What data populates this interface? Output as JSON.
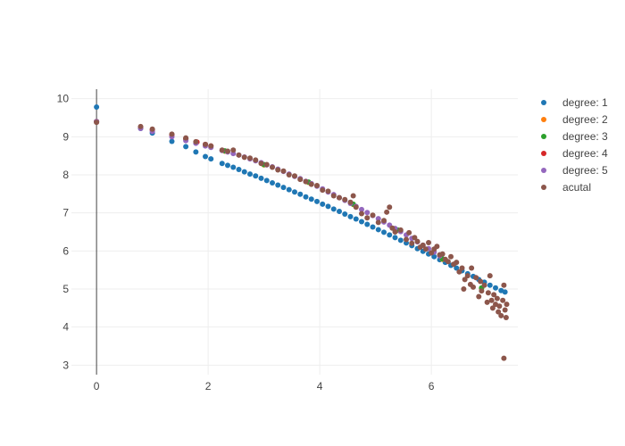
{
  "chart_data": {
    "type": "scatter",
    "title": "",
    "xlabel": "",
    "ylabel": "",
    "xlim": [
      -0.45,
      7.55
    ],
    "ylim": [
      2.75,
      10.25
    ],
    "x_ticks": [
      0,
      2,
      4,
      6
    ],
    "y_ticks": [
      3,
      4,
      5,
      6,
      7,
      8,
      9,
      10
    ],
    "grid": true,
    "legend_position": "right",
    "series": [
      {
        "name": "degree: 1",
        "color": "#1f77b4",
        "points": [
          [
            0,
            9.78
          ],
          [
            0.79,
            9.22
          ],
          [
            1.0,
            9.1
          ],
          [
            1.35,
            8.88
          ],
          [
            1.6,
            8.74
          ],
          [
            1.78,
            8.6
          ],
          [
            1.95,
            8.48
          ],
          [
            2.05,
            8.42
          ],
          [
            2.25,
            8.3
          ],
          [
            2.35,
            8.25
          ],
          [
            2.45,
            8.2
          ],
          [
            2.55,
            8.14
          ],
          [
            2.65,
            8.08
          ],
          [
            2.75,
            8.02
          ],
          [
            2.85,
            7.97
          ],
          [
            2.95,
            7.91
          ],
          [
            3.05,
            7.85
          ],
          [
            3.15,
            7.79
          ],
          [
            3.25,
            7.73
          ],
          [
            3.35,
            7.67
          ],
          [
            3.45,
            7.61
          ],
          [
            3.55,
            7.55
          ],
          [
            3.65,
            7.49
          ],
          [
            3.75,
            7.42
          ],
          [
            3.85,
            7.36
          ],
          [
            3.95,
            7.3
          ],
          [
            4.05,
            7.23
          ],
          [
            4.15,
            7.17
          ],
          [
            4.25,
            7.1
          ],
          [
            4.35,
            7.04
          ],
          [
            4.45,
            6.97
          ],
          [
            4.55,
            6.9
          ],
          [
            4.65,
            6.84
          ],
          [
            4.75,
            6.77
          ],
          [
            4.85,
            6.7
          ],
          [
            4.95,
            6.63
          ],
          [
            5.05,
            6.56
          ],
          [
            5.15,
            6.49
          ],
          [
            5.25,
            6.42
          ],
          [
            5.35,
            6.35
          ],
          [
            5.45,
            6.28
          ],
          [
            5.55,
            6.21
          ],
          [
            5.65,
            6.14
          ],
          [
            5.75,
            6.06
          ],
          [
            5.85,
            5.99
          ],
          [
            5.95,
            5.92
          ],
          [
            6.05,
            5.85
          ],
          [
            6.15,
            5.77
          ],
          [
            6.25,
            5.7
          ],
          [
            6.35,
            5.62
          ],
          [
            6.45,
            5.55
          ],
          [
            6.55,
            5.48
          ],
          [
            6.65,
            5.4
          ],
          [
            6.75,
            5.33
          ],
          [
            6.85,
            5.25
          ],
          [
            6.95,
            5.18
          ],
          [
            7.05,
            5.1
          ],
          [
            7.15,
            5.03
          ],
          [
            7.25,
            4.96
          ],
          [
            7.32,
            4.92
          ]
        ]
      },
      {
        "name": "degree: 2",
        "color": "#ff7f0e",
        "points": [
          [
            0,
            9.4
          ],
          [
            0.79,
            9.24
          ],
          [
            1.6,
            8.94
          ],
          [
            2.3,
            8.62
          ],
          [
            3.0,
            8.26
          ],
          [
            3.8,
            7.8
          ],
          [
            4.6,
            7.22
          ],
          [
            5.4,
            6.54
          ],
          [
            6.2,
            5.78
          ],
          [
            6.9,
            5.02
          ]
        ]
      },
      {
        "name": "degree: 3",
        "color": "#2ca02c",
        "points": [
          [
            0,
            9.4
          ],
          [
            0.79,
            9.24
          ],
          [
            1.6,
            8.94
          ],
          [
            2.3,
            8.63
          ],
          [
            3.0,
            8.27
          ],
          [
            3.8,
            7.81
          ],
          [
            4.6,
            7.23
          ],
          [
            5.4,
            6.55
          ],
          [
            6.2,
            5.79
          ],
          [
            6.9,
            5.03
          ]
        ]
      },
      {
        "name": "degree: 4",
        "color": "#d62728",
        "points": [
          [
            0,
            9.4
          ],
          [
            0.79,
            9.25
          ],
          [
            1.0,
            9.18
          ],
          [
            1.35,
            9.05
          ],
          [
            1.6,
            8.95
          ],
          [
            1.8,
            8.86
          ],
          [
            1.95,
            8.8
          ],
          [
            2.05,
            8.76
          ]
        ]
      },
      {
        "name": "degree: 5",
        "color": "#9467bd",
        "points": [
          [
            0,
            9.4
          ],
          [
            0.79,
            9.22
          ],
          [
            1.0,
            9.14
          ],
          [
            1.35,
            9.0
          ],
          [
            1.6,
            8.9
          ],
          [
            1.78,
            8.83
          ],
          [
            1.95,
            8.76
          ],
          [
            2.05,
            8.72
          ],
          [
            2.25,
            8.64
          ],
          [
            2.35,
            8.6
          ],
          [
            2.45,
            8.56
          ],
          [
            2.55,
            8.52
          ],
          [
            2.65,
            8.47
          ],
          [
            2.75,
            8.42
          ],
          [
            2.85,
            8.37
          ],
          [
            2.95,
            8.32
          ],
          [
            3.05,
            8.26
          ],
          [
            3.15,
            8.21
          ],
          [
            3.25,
            8.15
          ],
          [
            3.35,
            8.09
          ],
          [
            3.45,
            8.02
          ],
          [
            3.55,
            7.96
          ],
          [
            3.65,
            7.9
          ],
          [
            3.75,
            7.83
          ],
          [
            3.85,
            7.77
          ],
          [
            3.95,
            7.7
          ],
          [
            4.05,
            7.63
          ],
          [
            4.15,
            7.55
          ],
          [
            4.25,
            7.48
          ],
          [
            4.35,
            7.4
          ],
          [
            4.45,
            7.33
          ],
          [
            4.55,
            7.25
          ],
          [
            4.65,
            7.17
          ],
          [
            4.75,
            7.09
          ],
          [
            4.85,
            7.01
          ],
          [
            4.95,
            6.93
          ],
          [
            5.05,
            6.85
          ],
          [
            5.15,
            6.76
          ],
          [
            5.25,
            6.68
          ],
          [
            5.35,
            6.59
          ],
          [
            5.45,
            6.51
          ],
          [
            5.55,
            6.42
          ],
          [
            5.65,
            6.33
          ],
          [
            5.75,
            6.24
          ],
          [
            5.85,
            6.15
          ],
          [
            5.95,
            6.06
          ],
          [
            6.05,
            5.97
          ],
          [
            6.15,
            5.87
          ]
        ]
      },
      {
        "name": "acutal",
        "color": "#8c564b",
        "points": [
          [
            0,
            9.38
          ],
          [
            0.79,
            9.27
          ],
          [
            1.0,
            9.2
          ],
          [
            1.35,
            9.07
          ],
          [
            1.6,
            8.97
          ],
          [
            1.78,
            8.87
          ],
          [
            1.95,
            8.8
          ],
          [
            2.05,
            8.76
          ],
          [
            2.25,
            8.65
          ],
          [
            2.35,
            8.62
          ],
          [
            2.45,
            8.65
          ],
          [
            2.55,
            8.52
          ],
          [
            2.65,
            8.46
          ],
          [
            2.75,
            8.44
          ],
          [
            2.85,
            8.39
          ],
          [
            2.95,
            8.3
          ],
          [
            3.05,
            8.27
          ],
          [
            3.15,
            8.2
          ],
          [
            3.25,
            8.13
          ],
          [
            3.35,
            8.1
          ],
          [
            3.45,
            8.0
          ],
          [
            3.55,
            7.97
          ],
          [
            3.65,
            7.88
          ],
          [
            3.75,
            7.82
          ],
          [
            3.85,
            7.75
          ],
          [
            3.95,
            7.72
          ],
          [
            4.05,
            7.6
          ],
          [
            4.15,
            7.57
          ],
          [
            4.25,
            7.45
          ],
          [
            4.35,
            7.4
          ],
          [
            4.45,
            7.35
          ],
          [
            4.55,
            7.28
          ],
          [
            4.6,
            7.45
          ],
          [
            4.65,
            7.15
          ],
          [
            4.75,
            6.98
          ],
          [
            4.85,
            6.87
          ],
          [
            4.95,
            6.94
          ],
          [
            5.05,
            6.75
          ],
          [
            5.15,
            6.8
          ],
          [
            5.2,
            7.02
          ],
          [
            5.25,
            7.15
          ],
          [
            5.3,
            6.6
          ],
          [
            5.35,
            6.5
          ],
          [
            5.45,
            6.55
          ],
          [
            5.55,
            6.3
          ],
          [
            5.6,
            6.48
          ],
          [
            5.65,
            6.2
          ],
          [
            5.7,
            6.35
          ],
          [
            5.75,
            6.25
          ],
          [
            5.8,
            6.1
          ],
          [
            5.85,
            6.15
          ],
          [
            5.9,
            6.05
          ],
          [
            5.95,
            6.22
          ],
          [
            6.0,
            5.95
          ],
          [
            6.05,
            6.05
          ],
          [
            6.1,
            6.12
          ],
          [
            6.15,
            5.9
          ],
          [
            6.2,
            5.92
          ],
          [
            6.25,
            5.78
          ],
          [
            6.3,
            5.72
          ],
          [
            6.35,
            5.85
          ],
          [
            6.4,
            5.65
          ],
          [
            6.45,
            5.7
          ],
          [
            6.5,
            5.45
          ],
          [
            6.55,
            5.55
          ],
          [
            6.58,
            5.0
          ],
          [
            6.6,
            5.25
          ],
          [
            6.65,
            5.35
          ],
          [
            6.7,
            5.12
          ],
          [
            6.72,
            5.55
          ],
          [
            6.75,
            5.05
          ],
          [
            6.8,
            5.3
          ],
          [
            6.85,
            4.8
          ],
          [
            6.88,
            5.2
          ],
          [
            6.9,
            4.95
          ],
          [
            6.95,
            5.1
          ],
          [
            7.0,
            4.65
          ],
          [
            7.02,
            4.9
          ],
          [
            7.05,
            5.35
          ],
          [
            7.08,
            4.7
          ],
          [
            7.1,
            4.5
          ],
          [
            7.12,
            4.85
          ],
          [
            7.15,
            4.6
          ],
          [
            7.18,
            4.75
          ],
          [
            7.2,
            4.4
          ],
          [
            7.22,
            4.55
          ],
          [
            7.25,
            4.3
          ],
          [
            7.28,
            4.7
          ],
          [
            7.3,
            5.1
          ],
          [
            7.3,
            3.18
          ],
          [
            7.32,
            4.45
          ],
          [
            7.34,
            4.25
          ],
          [
            7.35,
            4.6
          ]
        ]
      }
    ]
  }
}
